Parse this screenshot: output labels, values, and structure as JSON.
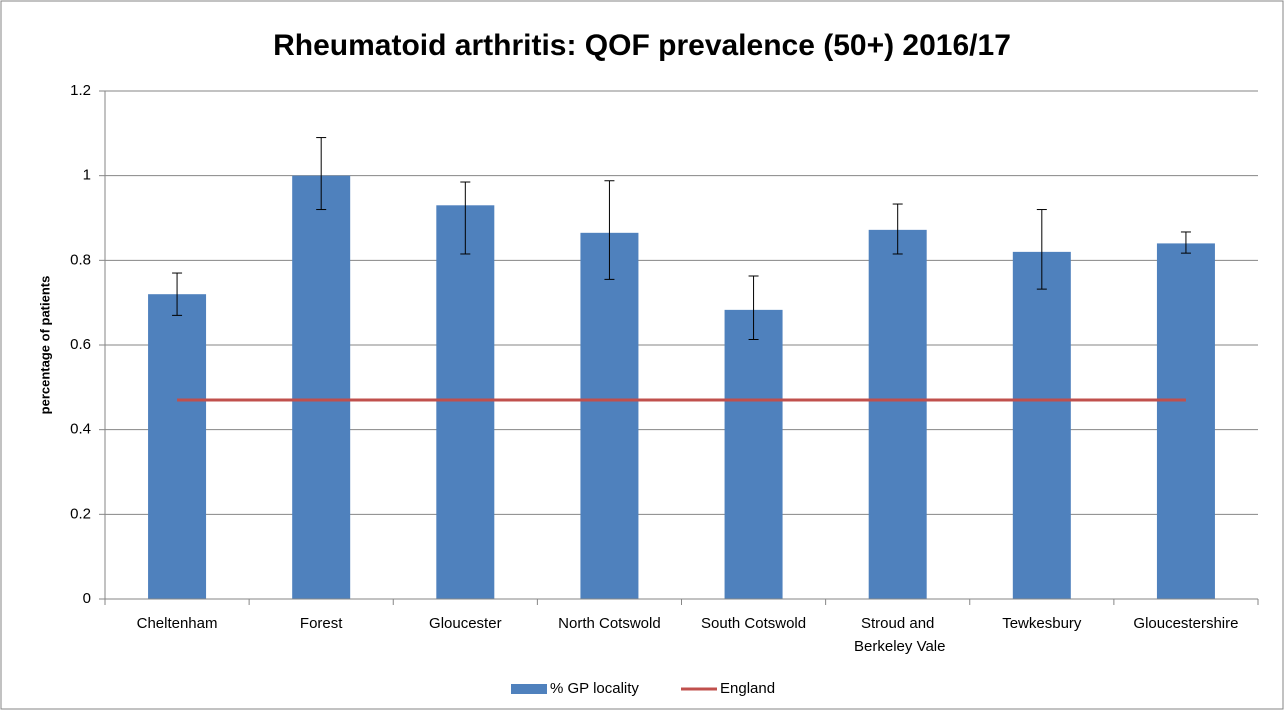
{
  "chart_data": {
    "type": "bar",
    "title": "Rheumatoid arthritis: QOF prevalence (50+) 2016/17",
    "y_label": "percentage of patients",
    "categories": [
      "Cheltenham",
      "Forest",
      "Gloucester",
      "North Cotswold",
      "South Cotswold",
      "Stroud and Berkeley Vale",
      "Tewkesbury",
      "Gloucestershire"
    ],
    "series": [
      {
        "name": "% GP locality",
        "color": "#4f81bd",
        "values": [
          0.72,
          1.0,
          0.93,
          0.865,
          0.683,
          0.872,
          0.82,
          0.84
        ],
        "errors_plus": [
          0.05,
          0.09,
          0.055,
          0.123,
          0.08,
          0.061,
          0.1,
          0.027
        ],
        "errors_minus": [
          0.05,
          0.08,
          0.115,
          0.11,
          0.07,
          0.057,
          0.088,
          0.023
        ]
      },
      {
        "name": "England",
        "color": "#c0504d",
        "type": "line",
        "values": [
          0.47,
          0.47,
          0.47,
          0.47,
          0.47,
          0.47,
          0.47,
          0.47
        ]
      }
    ],
    "ylim": [
      0,
      1.2
    ],
    "yticks": [
      0,
      0.2,
      0.4,
      0.6,
      0.8,
      1,
      1.2
    ],
    "grid": true,
    "legend": "bottom"
  }
}
